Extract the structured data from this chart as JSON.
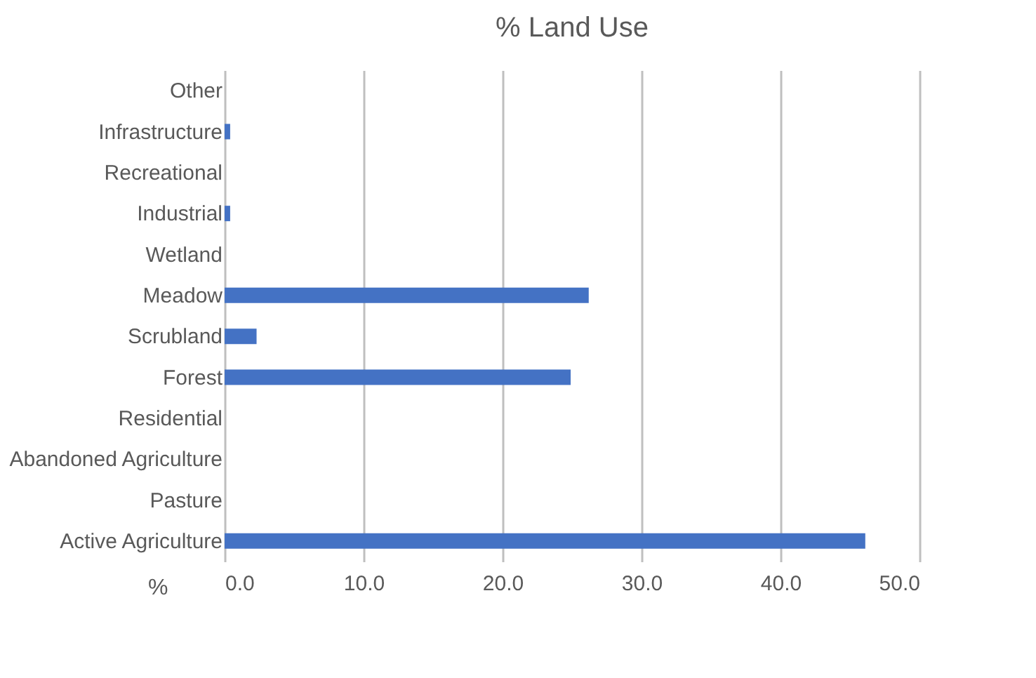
{
  "chart_data": {
    "type": "bar",
    "orientation": "horizontal",
    "title": "% Land Use",
    "xlabel": "%",
    "categories": [
      "Other",
      "Infrastructure",
      "Recreational",
      "Industrial",
      "Wetland",
      "Meadow",
      "Scrubland",
      "Forest",
      "Residential",
      "Abandoned Agriculture",
      "Pasture",
      "Active Agriculture"
    ],
    "values": [
      0,
      0.4,
      0,
      0.4,
      0,
      26.2,
      2.3,
      24.9,
      0,
      0,
      0,
      46.1
    ],
    "color": "#4472c4",
    "xlim": [
      0,
      50
    ],
    "xticks": [
      {
        "value": 0,
        "label": "0.0"
      },
      {
        "value": 10,
        "label": "10.0"
      },
      {
        "value": 20,
        "label": "20.0"
      },
      {
        "value": 30,
        "label": "30.0"
      },
      {
        "value": 40,
        "label": "40.0"
      },
      {
        "value": 50,
        "label": "50.0"
      }
    ],
    "grid": "x"
  }
}
